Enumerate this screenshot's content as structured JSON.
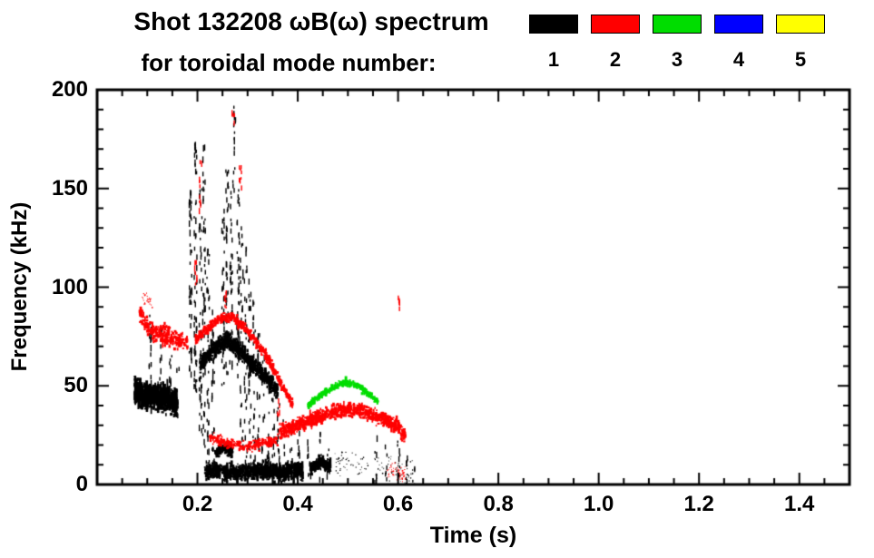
{
  "header": {
    "title": "Shot 132208 ωB(ω) spectrum",
    "subtitle": "for toroidal mode number:"
  },
  "legend": {
    "items": [
      {
        "label": "1",
        "color": "#000000"
      },
      {
        "label": "2",
        "color": "#ff0000"
      },
      {
        "label": "3",
        "color": "#00dd00"
      },
      {
        "label": "4",
        "color": "#0000ff"
      },
      {
        "label": "5",
        "color": "#ffff00"
      }
    ]
  },
  "chart_data": {
    "type": "scatter",
    "title": "Shot 132208 ωB(ω) spectrum",
    "xlabel": "Time (s)",
    "ylabel": "Frequency (kHz)",
    "xlim": [
      0.0,
      1.5
    ],
    "ylim": [
      0,
      200
    ],
    "x_minor_step": 0.05,
    "y_minor_step": 10,
    "xticks": [
      {
        "v": 0.2,
        "label": "0.2"
      },
      {
        "v": 0.4,
        "label": "0.4"
      },
      {
        "v": 0.6,
        "label": "0.6"
      },
      {
        "v": 0.8,
        "label": "0.8"
      },
      {
        "v": 1.0,
        "label": "1.0"
      },
      {
        "v": 1.2,
        "label": "1.2"
      },
      {
        "v": 1.4,
        "label": "1.4"
      }
    ],
    "yticks": [
      {
        "v": 0,
        "label": "0"
      },
      {
        "v": 50,
        "label": "50"
      },
      {
        "v": 100,
        "label": "100"
      },
      {
        "v": 150,
        "label": "150"
      },
      {
        "v": 200,
        "label": "200"
      }
    ],
    "band_format": "path = center polyline of [time_s, freq_kHz]; spread = kHz half-width; n = point count",
    "spike_format": "[time_s, f_min_kHz, f_max_kHz, n_points] vertical burst",
    "series": [
      {
        "name": "1",
        "color": "#000000",
        "bands": [
          {
            "path": [
              [
                0.075,
                50
              ],
              [
                0.085,
                46
              ],
              [
                0.1,
                45
              ],
              [
                0.12,
                44
              ],
              [
                0.14,
                43
              ],
              [
                0.16,
                41
              ]
            ],
            "spread": 6,
            "n": 1000,
            "size": 2,
            "streak": 0.12,
            "streaklen": 14
          },
          {
            "path": [
              [
                0.205,
                60
              ],
              [
                0.23,
                68
              ],
              [
                0.255,
                73
              ],
              [
                0.28,
                69
              ],
              [
                0.305,
                62
              ],
              [
                0.33,
                56
              ],
              [
                0.36,
                47
              ]
            ],
            "spread": 4,
            "n": 800,
            "size": 2,
            "streak": 0.1,
            "streaklen": 12
          },
          {
            "path": [
              [
                0.215,
                6
              ],
              [
                0.25,
                7
              ],
              [
                0.29,
                6
              ],
              [
                0.33,
                7
              ],
              [
                0.37,
                6
              ],
              [
                0.41,
                7
              ]
            ],
            "spread": 4,
            "n": 900,
            "size": 2,
            "streak": 0.15,
            "streaklen": 10
          },
          {
            "path": [
              [
                0.235,
                16
              ],
              [
                0.255,
                19
              ],
              [
                0.27,
                16
              ]
            ],
            "spread": 3,
            "n": 160,
            "size": 2
          },
          {
            "path": [
              [
                0.425,
                8
              ],
              [
                0.445,
                11
              ],
              [
                0.465,
                9
              ]
            ],
            "spread": 3,
            "n": 220,
            "size": 2,
            "streak": 0.1,
            "streaklen": 8
          },
          {
            "path": [
              [
                0.47,
                12
              ],
              [
                0.51,
                10
              ],
              [
                0.54,
                8
              ]
            ],
            "spread": 6,
            "n": 50,
            "size": 1
          },
          {
            "path": [
              [
                0.55,
                10
              ],
              [
                0.59,
                7
              ],
              [
                0.63,
                4
              ]
            ],
            "spread": 7,
            "n": 60,
            "size": 1
          }
        ],
        "spikes": [
          [
            0.105,
            44,
            88,
            22
          ],
          [
            0.125,
            40,
            80,
            16
          ],
          [
            0.145,
            38,
            72,
            12
          ],
          [
            0.16,
            36,
            60,
            10
          ],
          [
            0.185,
            55,
            150,
            45
          ],
          [
            0.195,
            45,
            178,
            55
          ],
          [
            0.205,
            25,
            155,
            45
          ],
          [
            0.212,
            15,
            175,
            50
          ],
          [
            0.22,
            10,
            120,
            35
          ],
          [
            0.23,
            12,
            90,
            25
          ],
          [
            0.25,
            50,
            140,
            35
          ],
          [
            0.258,
            55,
            162,
            40
          ],
          [
            0.266,
            60,
            150,
            35
          ],
          [
            0.272,
            150,
            192,
            16
          ],
          [
            0.28,
            55,
            150,
            40
          ],
          [
            0.287,
            20,
            132,
            30
          ],
          [
            0.295,
            10,
            122,
            30
          ],
          [
            0.303,
            8,
            112,
            26
          ],
          [
            0.312,
            6,
            96,
            22
          ],
          [
            0.32,
            5,
            80,
            20
          ],
          [
            0.33,
            5,
            66,
            18
          ],
          [
            0.34,
            5,
            56,
            15
          ],
          [
            0.35,
            4,
            48,
            12
          ],
          [
            0.36,
            4,
            42,
            12
          ],
          [
            0.37,
            3,
            38,
            10
          ],
          [
            0.385,
            3,
            32,
            9
          ],
          [
            0.4,
            3,
            28,
            8
          ],
          [
            0.42,
            3,
            24,
            7
          ],
          [
            0.445,
            3,
            32,
            9
          ],
          [
            0.46,
            3,
            20,
            6
          ],
          [
            0.555,
            0,
            28,
            7
          ],
          [
            0.575,
            0,
            24,
            6
          ],
          [
            0.6,
            0,
            30,
            8
          ],
          [
            0.615,
            0,
            18,
            5
          ],
          [
            0.63,
            0,
            10,
            4
          ]
        ]
      },
      {
        "name": "2",
        "color": "#ff0000",
        "bands": [
          {
            "path": [
              [
                0.085,
                86
              ],
              [
                0.1,
                80
              ],
              [
                0.12,
                77
              ],
              [
                0.15,
                74
              ],
              [
                0.18,
                72
              ]
            ],
            "spread": 5,
            "n": 260,
            "size": 2,
            "streak": 0.06,
            "streaklen": 8
          },
          {
            "path": [
              [
                0.09,
                95
              ],
              [
                0.11,
                92
              ]
            ],
            "spread": 4,
            "n": 25,
            "size": 1
          },
          {
            "path": [
              [
                0.195,
                73
              ],
              [
                0.22,
                79
              ],
              [
                0.245,
                84
              ],
              [
                0.27,
                85
              ],
              [
                0.3,
                78
              ],
              [
                0.33,
                68
              ],
              [
                0.355,
                57
              ],
              [
                0.375,
                47
              ],
              [
                0.39,
                40
              ]
            ],
            "spread": 2.5,
            "n": 550,
            "size": 2
          },
          {
            "path": [
              [
                0.225,
                24
              ],
              [
                0.26,
                21
              ],
              [
                0.3,
                19
              ],
              [
                0.34,
                21
              ],
              [
                0.36,
                23
              ]
            ],
            "spread": 2.5,
            "n": 220,
            "size": 2
          },
          {
            "path": [
              [
                0.365,
                27
              ],
              [
                0.41,
                31
              ],
              [
                0.45,
                35
              ],
              [
                0.485,
                38
              ],
              [
                0.52,
                38
              ],
              [
                0.55,
                35
              ],
              [
                0.575,
                33
              ],
              [
                0.6,
                29
              ],
              [
                0.615,
                24
              ]
            ],
            "spread": 3.5,
            "n": 900,
            "size": 2,
            "streak": 0.05,
            "streaklen": 8
          },
          {
            "path": [
              [
                0.575,
                8
              ],
              [
                0.6,
                5
              ],
              [
                0.615,
                3
              ]
            ],
            "spread": 5,
            "n": 60,
            "size": 1
          }
        ],
        "spikes": [
          [
            0.195,
            95,
            115,
            8
          ],
          [
            0.205,
            140,
            172,
            10
          ],
          [
            0.255,
            90,
            100,
            6
          ],
          [
            0.27,
            182,
            190,
            5
          ],
          [
            0.285,
            148,
            162,
            8
          ],
          [
            0.36,
            25,
            45,
            8
          ],
          [
            0.6,
            90,
            97,
            6
          ]
        ]
      },
      {
        "name": "3",
        "color": "#00dd00",
        "bands": [
          {
            "path": [
              [
                0.42,
                40
              ],
              [
                0.445,
                45
              ],
              [
                0.47,
                49
              ],
              [
                0.495,
                52
              ],
              [
                0.52,
                50
              ],
              [
                0.545,
                45
              ],
              [
                0.56,
                42
              ]
            ],
            "spread": 1.8,
            "n": 300,
            "size": 2
          }
        ],
        "spikes": []
      },
      {
        "name": "4",
        "color": "#0000ff",
        "bands": [],
        "spikes": []
      },
      {
        "name": "5",
        "color": "#ffff00",
        "bands": [],
        "spikes": []
      }
    ]
  }
}
